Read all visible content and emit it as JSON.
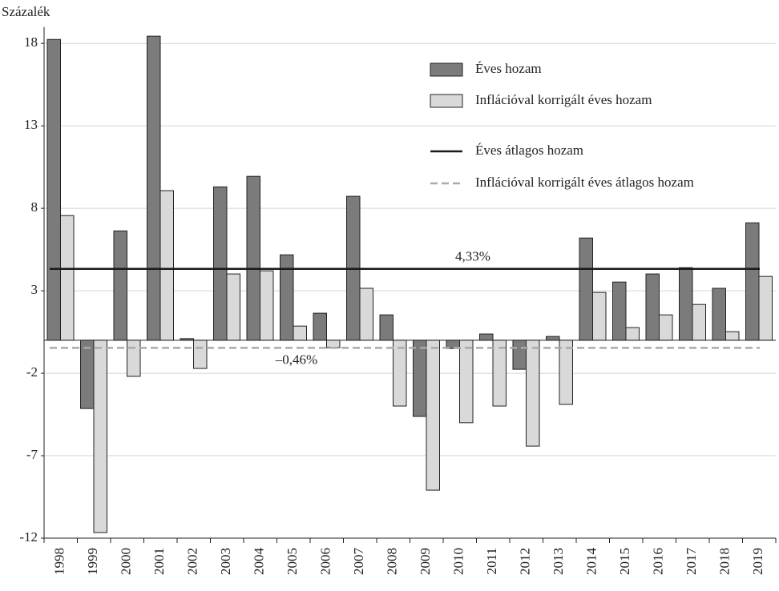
{
  "chart_data": {
    "type": "bar",
    "y_label": "Százalék",
    "categories": [
      "1998",
      "1999",
      "2000",
      "2001",
      "2002",
      "2003",
      "2004",
      "2005",
      "2006",
      "2007",
      "2008",
      "2009",
      "2010",
      "2011",
      "2012",
      "2013",
      "2014",
      "2015",
      "2016",
      "2017",
      "2018",
      "2019"
    ],
    "series": [
      {
        "name": "Éves hozam",
        "color": "#7b7b7b",
        "values": [
          18.24,
          -4.14,
          6.63,
          18.44,
          0.1,
          9.3,
          9.94,
          5.18,
          1.64,
          8.73,
          1.54,
          -4.62,
          -0.5,
          0.38,
          -1.76,
          0.23,
          6.2,
          3.53,
          4.02,
          4.4,
          3.15,
          7.12
        ]
      },
      {
        "name": "Inflációval korrigált éves hozam",
        "color": "#d9d9d9",
        "values": [
          7.56,
          -11.66,
          -2.19,
          9.07,
          -1.71,
          4.02,
          4.21,
          0.86,
          -0.45,
          3.15,
          -3.99,
          -9.09,
          -5.0,
          -3.99,
          -6.42,
          -3.89,
          2.9,
          0.77,
          1.54,
          2.17,
          0.52,
          3.87
        ]
      }
    ],
    "reference_lines": [
      {
        "name": "Éves átlagos hozam",
        "value": 4.33,
        "label": "4,33%",
        "color": "#1a1a1a",
        "dashed": false
      },
      {
        "name": "Inflációval korrigált éves átlagos hozam",
        "value": -0.46,
        "label": "–0,46%",
        "color": "#aaaaaa",
        "dashed": true
      }
    ],
    "ylim": [
      -12,
      19
    ],
    "yticks": [
      -12,
      -7,
      -2,
      3,
      8,
      13,
      18
    ],
    "grid": true,
    "legend": "upper right"
  }
}
